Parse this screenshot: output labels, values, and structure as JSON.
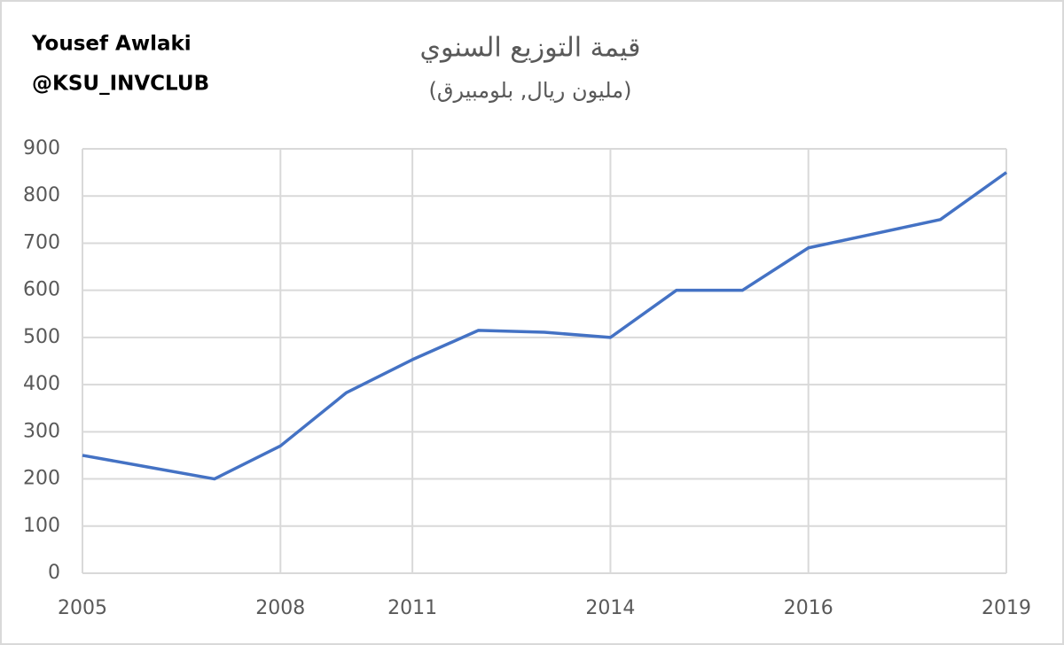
{
  "chart_data": {
    "type": "line",
    "title": "قيمة التوزيع السنوي",
    "subtitle": "(مليون ريال, بلومبيرق)",
    "annotations": [
      "Yousef Awlaki",
      "@KSU_INVCLUB"
    ],
    "categories": [
      "2005",
      null,
      null,
      "2008",
      null,
      "2011",
      null,
      null,
      "2014",
      null,
      null,
      "2016",
      null,
      null,
      "2019"
    ],
    "series": [
      {
        "name": "قيمة التوزيع السنوي",
        "color": "#4472c4",
        "values": [
          250,
          225,
          200,
          270,
          383,
          453,
          515,
          511,
          500,
          600,
          600,
          690,
          720,
          750,
          850
        ]
      }
    ],
    "ylim": [
      0,
      900
    ],
    "yticks": [
      0,
      100,
      200,
      300,
      400,
      500,
      600,
      700,
      800,
      900
    ],
    "grid": true
  }
}
